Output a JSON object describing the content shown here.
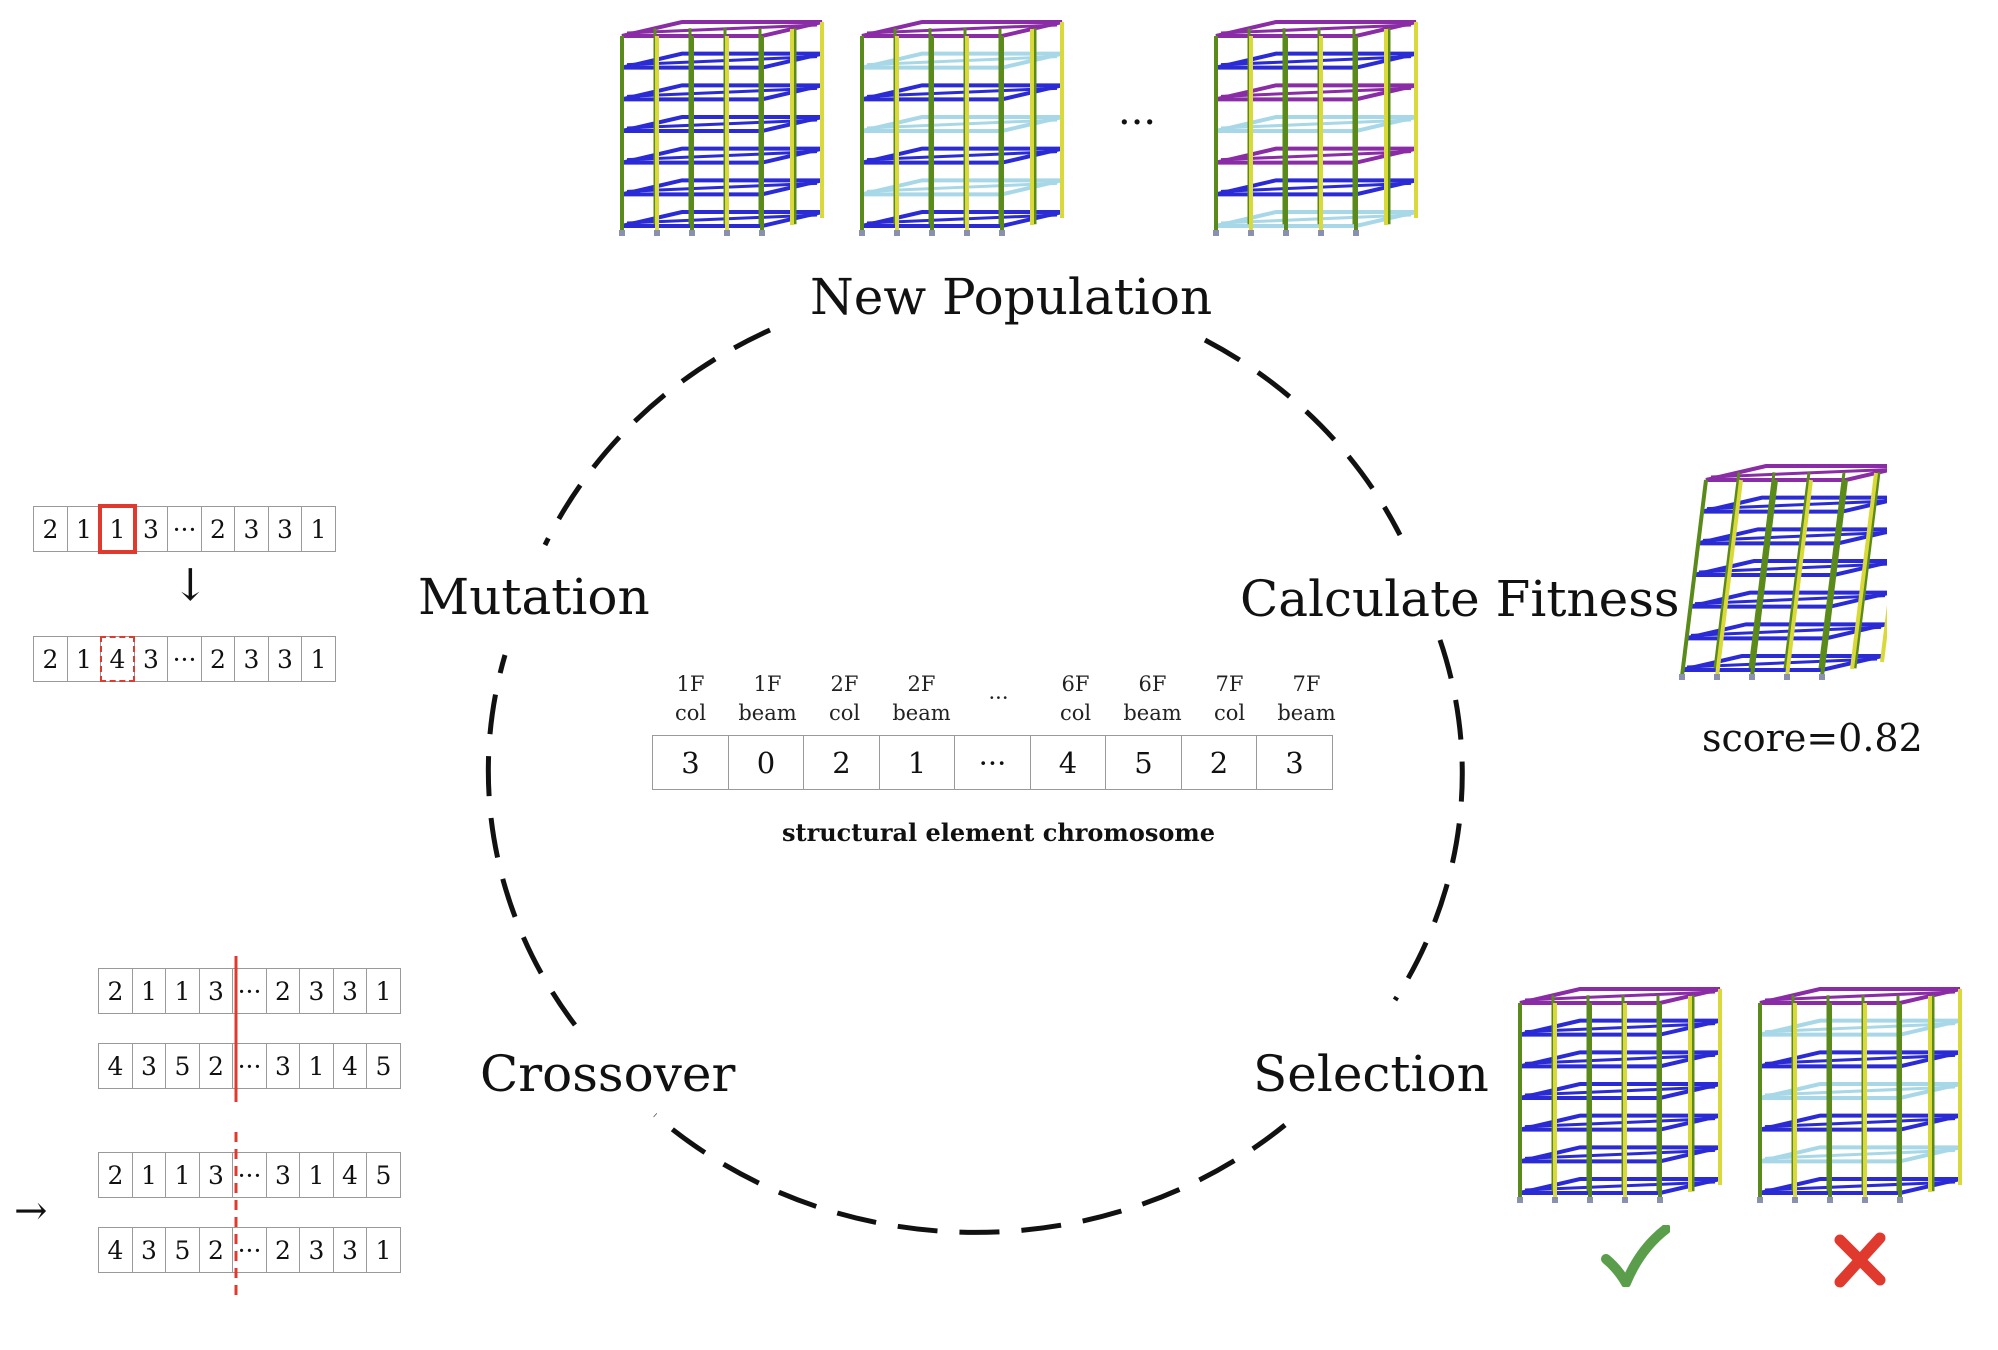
{
  "stages": {
    "new_population": "New Population",
    "calculate_fitness": "Calculate Fitness",
    "selection": "Selection",
    "crossover": "Crossover",
    "mutation": "Mutation"
  },
  "population_ellipsis": "···",
  "chromosome": {
    "genes": [
      {
        "label1": "1F",
        "label2": "col",
        "value": "3"
      },
      {
        "label1": "1F",
        "label2": "beam",
        "value": "0"
      },
      {
        "label1": "2F",
        "label2": "col",
        "value": "2"
      },
      {
        "label1": "2F",
        "label2": "beam",
        "value": "1"
      },
      {
        "label1": "···",
        "label2": "",
        "value": "···"
      },
      {
        "label1": "6F",
        "label2": "col",
        "value": "4"
      },
      {
        "label1": "6F",
        "label2": "beam",
        "value": "5"
      },
      {
        "label1": "7F",
        "label2": "col",
        "value": "2"
      },
      {
        "label1": "7F",
        "label2": "beam",
        "value": "3"
      }
    ],
    "caption": "structural element chromosome"
  },
  "fitness": {
    "score_text": "score=0.82"
  },
  "mutation": {
    "before": [
      "2",
      "1",
      "1",
      "3",
      "···",
      "2",
      "3",
      "3",
      "1"
    ],
    "after": [
      "2",
      "1",
      "4",
      "3",
      "···",
      "2",
      "3",
      "3",
      "1"
    ],
    "mutated_index": 2,
    "arrow": "↓"
  },
  "crossover": {
    "parent1": [
      "2",
      "1",
      "1",
      "3",
      "···",
      "2",
      "3",
      "3",
      "1"
    ],
    "parent2": [
      "4",
      "3",
      "5",
      "2",
      "···",
      "3",
      "1",
      "4",
      "5"
    ],
    "offspring1": [
      "2",
      "1",
      "1",
      "3",
      "···",
      "3",
      "1",
      "4",
      "5"
    ],
    "offspring2": [
      "4",
      "3",
      "5",
      "2",
      "···",
      "2",
      "3",
      "3",
      "1"
    ],
    "arrow": "→"
  },
  "selection": {
    "accept_icon": "check-icon",
    "reject_icon": "cross-icon",
    "accept_color": "#5a9e4b",
    "reject_color": "#e03a2f"
  },
  "colors": {
    "purple": "#8a2ca6",
    "blue": "#2b2bd6",
    "green": "#5a8a1a",
    "yellow": "#d9d93a",
    "lightblue": "#a8d8e8",
    "red": "#e03a2f"
  }
}
